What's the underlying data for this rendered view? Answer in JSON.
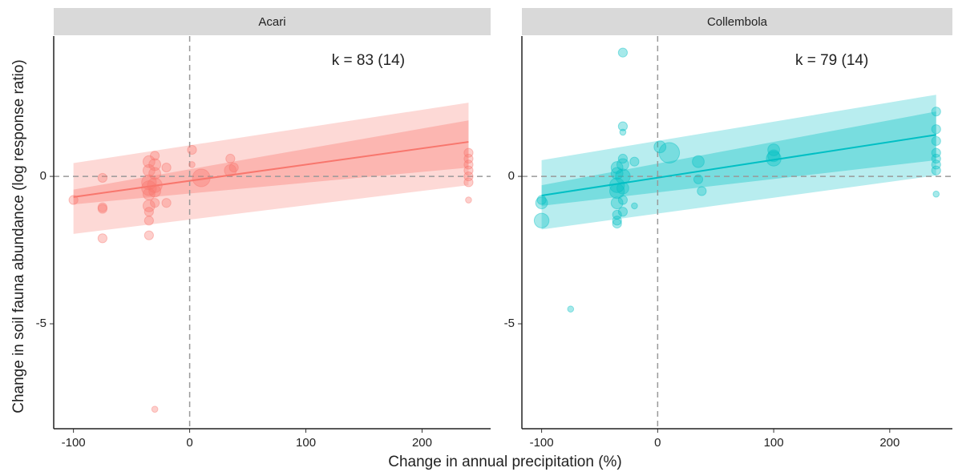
{
  "xlabel": "Change in annual precipitation (%)",
  "ylabel": "Change in soil fauna abundance (log response ratio)",
  "chart_data": [
    {
      "type": "scatter",
      "title": "Acari",
      "annotation": "k = 83 (14)",
      "color": "#f8766d",
      "xlim": [
        -117,
        259
      ],
      "ylim": [
        -8.56,
        4.76
      ],
      "xticks": [
        -100,
        0,
        100,
        200
      ],
      "yticks": [
        -5,
        0
      ],
      "hlines": [
        0
      ],
      "vlines": [
        0
      ],
      "points": {
        "x": [
          -100,
          -75,
          -75,
          -75,
          -75,
          -35,
          -35,
          -35,
          -35,
          -35,
          -35,
          -35,
          -35,
          -35,
          -30,
          -30,
          -30,
          -30,
          -30,
          -30,
          -30,
          -20,
          -20,
          2,
          2,
          10,
          35,
          35,
          38,
          240,
          240,
          240,
          240,
          240,
          240,
          240
        ],
        "y": [
          -0.8,
          -0.05,
          -1.05,
          -1.1,
          -2.1,
          0.5,
          0.2,
          -0.2,
          -0.4,
          -0.6,
          -1.0,
          -1.2,
          -1.5,
          -2.0,
          0.7,
          0.4,
          0.1,
          -0.3,
          -0.5,
          -0.9,
          -7.9,
          0.3,
          -0.9,
          0.9,
          0.4,
          -0.05,
          0.2,
          0.6,
          0.3,
          0.8,
          0.6,
          0.4,
          0.2,
          0,
          -0.2,
          -0.8
        ],
        "size": [
          2,
          2,
          2,
          2,
          2,
          3,
          3,
          4,
          4,
          3,
          3,
          2,
          2,
          2,
          2,
          3,
          3,
          4,
          3,
          2,
          1,
          2,
          2,
          2,
          1,
          5,
          3,
          2,
          2,
          2,
          2,
          2,
          2,
          2,
          2,
          1
        ]
      },
      "fit": {
        "x": [
          -100,
          240
        ],
        "y": [
          -0.7,
          1.17
        ],
        "ci_lower": [
          -0.95,
          0.3
        ],
        "ci_upper": [
          -0.45,
          1.9
        ],
        "pi_lower": [
          -1.95,
          -0.3
        ],
        "pi_upper": [
          0.45,
          2.5
        ]
      }
    },
    {
      "type": "scatter",
      "title": "Collembola",
      "annotation": "k = 79 (14)",
      "color": "#00bfc4",
      "xlim": [
        -117,
        254
      ],
      "ylim": [
        -8.56,
        4.76
      ],
      "xticks": [
        -100,
        0,
        100,
        200
      ],
      "yticks": [
        -5,
        0
      ],
      "hlines": [
        0
      ],
      "vlines": [
        0
      ],
      "points": {
        "x": [
          -100,
          -100,
          -100,
          -75,
          -35,
          -35,
          -35,
          -35,
          -35,
          -35,
          -35,
          -35,
          -30,
          -30,
          -30,
          -30,
          -30,
          -30,
          -30,
          -30,
          -30,
          -20,
          -20,
          2,
          10,
          35,
          35,
          38,
          100,
          100,
          100,
          240,
          240,
          240,
          240,
          240,
          240,
          240,
          240
        ],
        "y": [
          -0.8,
          -1.5,
          -0.9,
          -4.5,
          0.3,
          0.1,
          -0.3,
          -0.5,
          -0.9,
          -1.3,
          -1.5,
          -1.6,
          4.2,
          1.7,
          1.5,
          0.6,
          0.4,
          0,
          -0.4,
          -0.8,
          -1.2,
          0.5,
          -1.0,
          1.0,
          0.8,
          0.5,
          -0.1,
          -0.5,
          0.7,
          0.9,
          0.6,
          2.2,
          1.6,
          1.2,
          0.8,
          0.6,
          0.4,
          0.2,
          -0.6
        ],
        "size": [
          2,
          4,
          3,
          1,
          3,
          3,
          4,
          4,
          3,
          2,
          2,
          2,
          2,
          2,
          1,
          2,
          3,
          4,
          3,
          2,
          2,
          2,
          1,
          3,
          6,
          3,
          2,
          2,
          3,
          3,
          4,
          2,
          2,
          2,
          2,
          2,
          2,
          2,
          1
        ]
      },
      "fit": {
        "x": [
          -100,
          240
        ],
        "y": [
          -0.65,
          1.41
        ],
        "ci_lower": [
          -1.0,
          0.55
        ],
        "ci_upper": [
          -0.3,
          2.2
        ],
        "pi_lower": [
          -1.8,
          0.03
        ],
        "pi_upper": [
          0.55,
          2.77
        ]
      }
    }
  ]
}
